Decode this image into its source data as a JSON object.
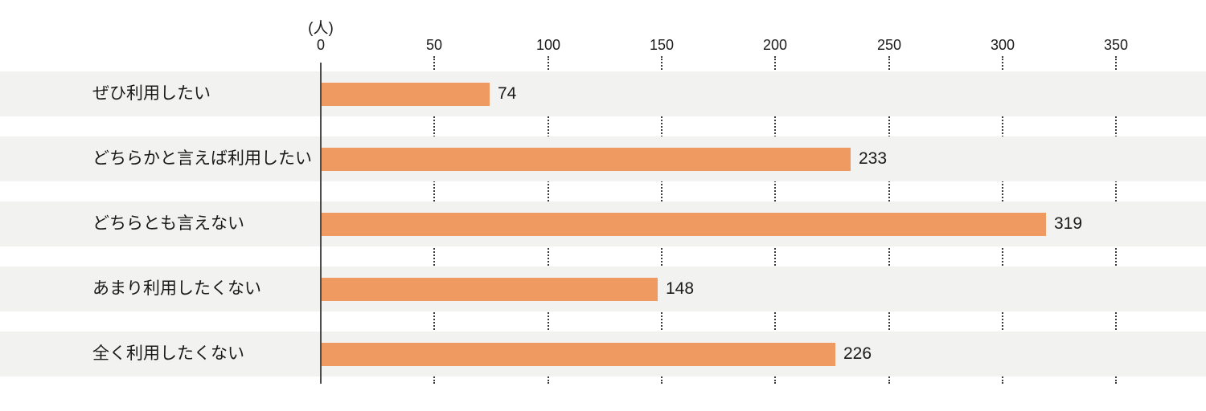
{
  "chart_data": {
    "type": "bar",
    "orientation": "horizontal",
    "title": "",
    "unit": "(人)",
    "categories": [
      "ぜひ利用したい",
      "どちらかと言えば利用したい",
      "どちらとも言えない",
      "あまり利用したくない",
      "全く利用したくない"
    ],
    "values": [
      74,
      233,
      319,
      148,
      226
    ],
    "x_ticks": [
      "0",
      "50",
      "100",
      "150",
      "200",
      "250",
      "300",
      "350"
    ],
    "x_tick_values": [
      0,
      50,
      100,
      150,
      200,
      250,
      300,
      350
    ],
    "xlim": [
      0,
      390
    ],
    "grid": "dotted vertical gridlines at each tick, visible only in gaps between row bands",
    "legend": "none",
    "colors": {
      "bar": "#EF9A61",
      "row_background": "#F2F2F1",
      "text": "#1A1A1A",
      "axis_line": "#4D4D4D",
      "grid_dots": "#3A3A3A",
      "background": "#FFFFFF"
    }
  }
}
